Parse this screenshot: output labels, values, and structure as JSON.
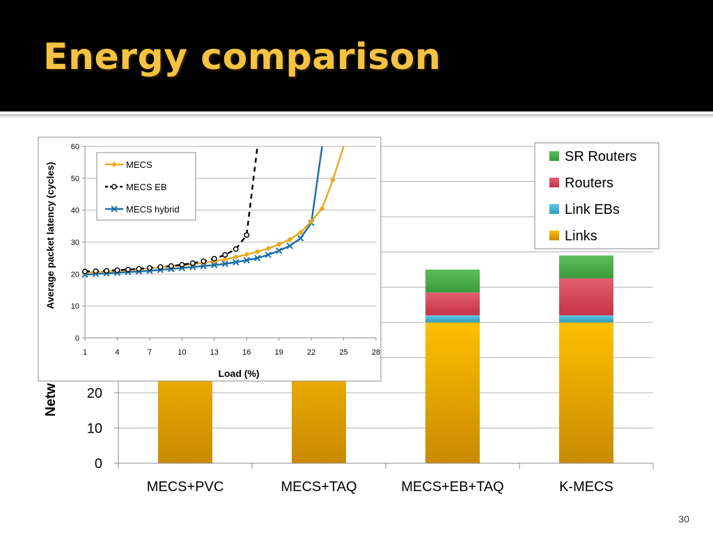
{
  "slide": {
    "title": "Energy comparison",
    "number": "30"
  },
  "colors": {
    "header_bg": "#000000",
    "title": "#f5c342"
  },
  "chart_data": [
    {
      "type": "bar",
      "stacked": true,
      "categories": [
        "MECS+PVC",
        "MECS+TAQ",
        "MECS+EB+TAQ",
        "K-MECS"
      ],
      "ylabel": "Netw",
      "ylim": [
        0,
        90
      ],
      "yticks": [
        0,
        10,
        20
      ],
      "grid": true,
      "legend_position": "top-right",
      "series": [
        {
          "name": "Links",
          "color": "#f0a800",
          "values": [
            40,
            40,
            40,
            40
          ]
        },
        {
          "name": "Link EBs",
          "color": "#3ab0cf",
          "values": [
            0,
            0,
            2,
            2
          ]
        },
        {
          "name": "Routers",
          "color": "#d94a5c",
          "values": [
            0,
            0,
            6.5,
            10.5
          ]
        },
        {
          "name": "SR Routers",
          "color": "#4cae4c",
          "values": [
            0,
            0,
            6.5,
            6.5
          ]
        }
      ]
    },
    {
      "type": "line",
      "xlabel": "Load (%)",
      "ylabel": "Average packet latency (cycles)",
      "xlim": [
        1,
        28
      ],
      "ylim": [
        0,
        60
      ],
      "xticks": [
        1,
        4,
        7,
        10,
        13,
        16,
        19,
        22,
        25,
        28
      ],
      "yticks": [
        0,
        10,
        20,
        30,
        40,
        50,
        60
      ],
      "grid": true,
      "legend_position": "top-left",
      "series": [
        {
          "name": "MECS",
          "color": "#e8a91e",
          "marker": "diamond",
          "dash": "",
          "x": [
            1,
            2,
            3,
            4,
            5,
            6,
            7,
            8,
            9,
            10,
            11,
            12,
            13,
            14,
            15,
            16,
            17,
            18,
            19,
            20,
            21,
            22,
            23,
            24,
            25
          ],
          "y": [
            20.5,
            20.6,
            20.8,
            21.0,
            21.2,
            21.5,
            21.8,
            22.1,
            22.4,
            22.7,
            23.1,
            23.5,
            24.0,
            24.6,
            25.3,
            26.1,
            27.0,
            28.0,
            29.3,
            30.8,
            33.0,
            36.5,
            40.5,
            49.5,
            60
          ]
        },
        {
          "name": "MECS EB",
          "color": "#000000",
          "marker": "circle",
          "dash": "7,6",
          "x": [
            1,
            2,
            3,
            4,
            5,
            6,
            7,
            8,
            9,
            10,
            11,
            12,
            13,
            14,
            15,
            16,
            17
          ],
          "y": [
            20.8,
            20.9,
            21.0,
            21.2,
            21.4,
            21.6,
            21.9,
            22.2,
            22.5,
            22.9,
            23.4,
            24.0,
            24.8,
            26.0,
            27.8,
            32.2,
            60
          ]
        },
        {
          "name": "MECS hybrid",
          "color": "#1b6fa8",
          "marker": "x",
          "dash": "",
          "x": [
            1,
            2,
            3,
            4,
            5,
            6,
            7,
            8,
            9,
            10,
            11,
            12,
            13,
            14,
            15,
            16,
            17,
            18,
            19,
            20,
            21,
            22,
            23
          ],
          "y": [
            19.8,
            20.0,
            20.2,
            20.4,
            20.6,
            20.8,
            21.0,
            21.3,
            21.6,
            21.9,
            22.2,
            22.5,
            22.8,
            23.2,
            23.7,
            24.3,
            25.0,
            26.0,
            27.3,
            28.8,
            31.2,
            36.0,
            60
          ]
        }
      ]
    }
  ]
}
